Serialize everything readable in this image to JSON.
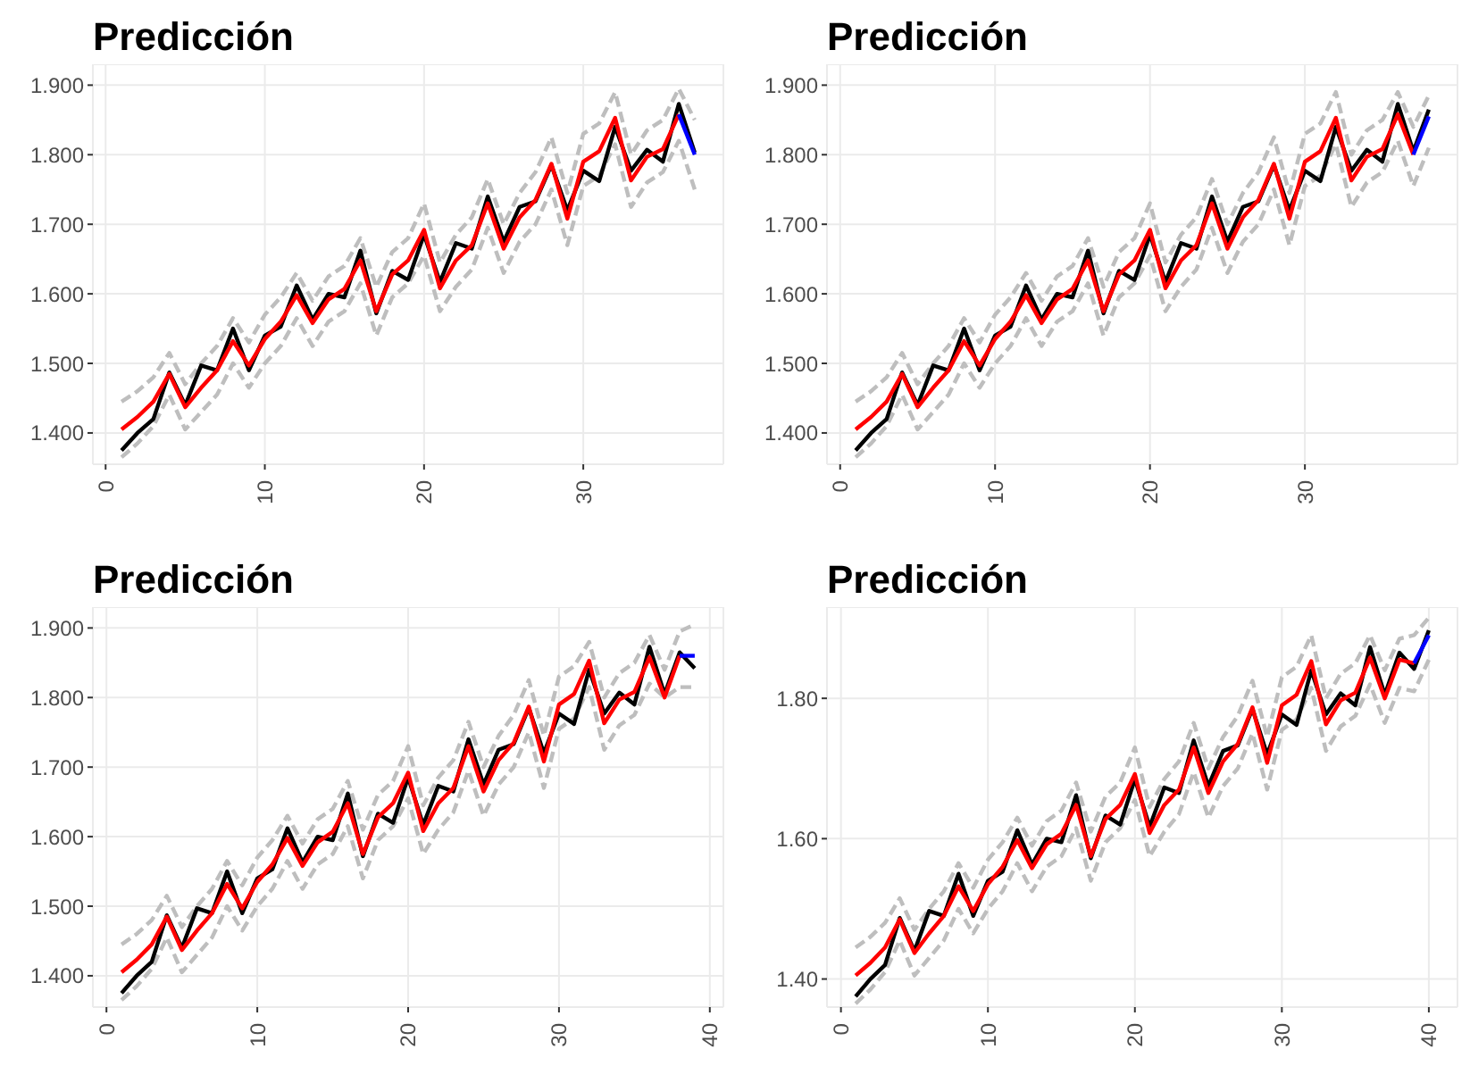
{
  "chart_data": [
    {
      "type": "line",
      "title": "Predicción",
      "xlim": [
        -0.8,
        38.8
      ],
      "xticks": [
        0,
        10,
        20,
        30
      ],
      "ylim": [
        1.355,
        1.93
      ],
      "yticks": [
        {
          "value": 1.4,
          "label": "1.400"
        },
        {
          "value": 1.5,
          "label": "1.500"
        },
        {
          "value": 1.6,
          "label": "1.600"
        },
        {
          "value": 1.7,
          "label": "1.700"
        },
        {
          "value": 1.8,
          "label": "1.800"
        },
        {
          "value": 1.9,
          "label": "1.900"
        }
      ],
      "grid": true,
      "marker": "none",
      "series": [
        {
          "color": "#bebebe",
          "line_style": "dashed",
          "x": [
            1,
            2,
            3,
            4,
            5,
            6,
            7,
            8,
            9,
            10,
            11,
            12,
            13,
            14,
            15,
            16,
            17,
            18,
            19,
            20,
            21,
            22,
            23,
            24,
            25,
            26,
            27,
            28,
            29,
            30,
            31,
            32,
            33,
            34,
            35,
            36,
            37
          ],
          "values": [
            1.445,
            1.46,
            1.48,
            1.515,
            1.47,
            1.5,
            1.525,
            1.565,
            1.53,
            1.57,
            1.595,
            1.63,
            1.59,
            1.625,
            1.64,
            1.68,
            1.61,
            1.66,
            1.68,
            1.73,
            1.645,
            1.685,
            1.71,
            1.765,
            1.7,
            1.745,
            1.775,
            1.825,
            1.745,
            1.83,
            1.845,
            1.89,
            1.8,
            1.835,
            1.85,
            1.895,
            1.85
          ]
        },
        {
          "color": "#bebebe",
          "line_style": "dashed",
          "x": [
            1,
            2,
            3,
            4,
            5,
            6,
            7,
            8,
            9,
            10,
            11,
            12,
            13,
            14,
            15,
            16,
            17,
            18,
            19,
            20,
            21,
            22,
            23,
            24,
            25,
            26,
            27,
            28,
            29,
            30,
            31,
            32,
            33,
            34,
            35,
            36,
            37
          ],
          "values": [
            1.365,
            1.385,
            1.41,
            1.455,
            1.405,
            1.43,
            1.455,
            1.5,
            1.465,
            1.5,
            1.525,
            1.565,
            1.525,
            1.56,
            1.575,
            1.615,
            1.54,
            1.595,
            1.615,
            1.655,
            1.575,
            1.61,
            1.635,
            1.695,
            1.63,
            1.675,
            1.7,
            1.75,
            1.67,
            1.755,
            1.77,
            1.815,
            1.725,
            1.76,
            1.775,
            1.82,
            1.75
          ]
        },
        {
          "color": "#000000",
          "line_style": "solid",
          "x": [
            1,
            2,
            3,
            4,
            5,
            6,
            7,
            8,
            9,
            10,
            11,
            12,
            13,
            14,
            15,
            16,
            17,
            18,
            19,
            20,
            21,
            22,
            23,
            24,
            25,
            26,
            27,
            28,
            29,
            30,
            31,
            32,
            33,
            34,
            35,
            36,
            37
          ],
          "values": [
            1.375,
            1.4,
            1.42,
            1.487,
            1.44,
            1.497,
            1.49,
            1.55,
            1.49,
            1.54,
            1.553,
            1.612,
            1.563,
            1.6,
            1.595,
            1.662,
            1.572,
            1.633,
            1.62,
            1.685,
            1.617,
            1.673,
            1.665,
            1.74,
            1.675,
            1.725,
            1.733,
            1.785,
            1.72,
            1.777,
            1.762,
            1.84,
            1.777,
            1.807,
            1.79,
            1.873,
            1.803
          ]
        },
        {
          "color": "#ff0000",
          "line_style": "solid",
          "x": [
            1,
            2,
            3,
            4,
            5,
            6,
            7,
            8,
            9,
            10,
            11,
            12,
            13,
            14,
            15,
            16,
            17,
            18,
            19,
            20,
            21,
            22,
            23,
            24,
            25,
            26,
            27,
            28,
            29,
            30,
            31,
            32,
            33,
            34,
            35,
            36
          ],
          "values": [
            1.405,
            1.423,
            1.445,
            1.485,
            1.437,
            1.465,
            1.49,
            1.532,
            1.497,
            1.535,
            1.56,
            1.598,
            1.558,
            1.592,
            1.607,
            1.648,
            1.575,
            1.628,
            1.648,
            1.692,
            1.608,
            1.648,
            1.67,
            1.73,
            1.665,
            1.71,
            1.735,
            1.787,
            1.708,
            1.79,
            1.805,
            1.853,
            1.763,
            1.797,
            1.808,
            1.858
          ]
        },
        {
          "color": "#0000ff",
          "line_style": "solid",
          "x": [
            36,
            37
          ],
          "values": [
            1.858,
            1.8
          ]
        }
      ]
    },
    {
      "type": "line",
      "title": "Predicción",
      "xlim": [
        -0.85,
        39.85
      ],
      "xticks": [
        0,
        10,
        20,
        30
      ],
      "ylim": [
        1.355,
        1.93
      ],
      "yticks": [
        {
          "value": 1.4,
          "label": "1.400"
        },
        {
          "value": 1.5,
          "label": "1.500"
        },
        {
          "value": 1.6,
          "label": "1.600"
        },
        {
          "value": 1.7,
          "label": "1.700"
        },
        {
          "value": 1.8,
          "label": "1.800"
        },
        {
          "value": 1.9,
          "label": "1.900"
        }
      ],
      "grid": true,
      "marker": "none",
      "series": [
        {
          "color": "#bebebe",
          "line_style": "dashed",
          "x": [
            1,
            2,
            3,
            4,
            5,
            6,
            7,
            8,
            9,
            10,
            11,
            12,
            13,
            14,
            15,
            16,
            17,
            18,
            19,
            20,
            21,
            22,
            23,
            24,
            25,
            26,
            27,
            28,
            29,
            30,
            31,
            32,
            33,
            34,
            35,
            36,
            37,
            38
          ],
          "values": [
            1.445,
            1.46,
            1.48,
            1.515,
            1.47,
            1.5,
            1.525,
            1.565,
            1.53,
            1.57,
            1.595,
            1.63,
            1.59,
            1.625,
            1.64,
            1.68,
            1.61,
            1.66,
            1.68,
            1.73,
            1.645,
            1.685,
            1.71,
            1.765,
            1.7,
            1.745,
            1.775,
            1.825,
            1.745,
            1.83,
            1.845,
            1.89,
            1.8,
            1.835,
            1.85,
            1.89,
            1.84,
            1.885
          ]
        },
        {
          "color": "#bebebe",
          "line_style": "dashed",
          "x": [
            1,
            2,
            3,
            4,
            5,
            6,
            7,
            8,
            9,
            10,
            11,
            12,
            13,
            14,
            15,
            16,
            17,
            18,
            19,
            20,
            21,
            22,
            23,
            24,
            25,
            26,
            27,
            28,
            29,
            30,
            31,
            32,
            33,
            34,
            35,
            36,
            37,
            38
          ],
          "values": [
            1.365,
            1.385,
            1.41,
            1.455,
            1.405,
            1.43,
            1.455,
            1.5,
            1.465,
            1.5,
            1.525,
            1.565,
            1.525,
            1.56,
            1.575,
            1.615,
            1.54,
            1.595,
            1.615,
            1.655,
            1.575,
            1.61,
            1.635,
            1.695,
            1.63,
            1.675,
            1.7,
            1.75,
            1.67,
            1.755,
            1.77,
            1.815,
            1.725,
            1.76,
            1.775,
            1.82,
            1.755,
            1.81
          ]
        },
        {
          "color": "#000000",
          "line_style": "solid",
          "x": [
            1,
            2,
            3,
            4,
            5,
            6,
            7,
            8,
            9,
            10,
            11,
            12,
            13,
            14,
            15,
            16,
            17,
            18,
            19,
            20,
            21,
            22,
            23,
            24,
            25,
            26,
            27,
            28,
            29,
            30,
            31,
            32,
            33,
            34,
            35,
            36,
            37,
            38
          ],
          "values": [
            1.375,
            1.4,
            1.42,
            1.487,
            1.44,
            1.497,
            1.49,
            1.55,
            1.49,
            1.54,
            1.553,
            1.612,
            1.563,
            1.6,
            1.595,
            1.662,
            1.572,
            1.633,
            1.62,
            1.685,
            1.617,
            1.673,
            1.665,
            1.74,
            1.675,
            1.725,
            1.733,
            1.785,
            1.72,
            1.777,
            1.762,
            1.84,
            1.777,
            1.807,
            1.79,
            1.873,
            1.805,
            1.865
          ]
        },
        {
          "color": "#ff0000",
          "line_style": "solid",
          "x": [
            1,
            2,
            3,
            4,
            5,
            6,
            7,
            8,
            9,
            10,
            11,
            12,
            13,
            14,
            15,
            16,
            17,
            18,
            19,
            20,
            21,
            22,
            23,
            24,
            25,
            26,
            27,
            28,
            29,
            30,
            31,
            32,
            33,
            34,
            35,
            36,
            37
          ],
          "values": [
            1.405,
            1.423,
            1.445,
            1.485,
            1.437,
            1.465,
            1.49,
            1.532,
            1.497,
            1.535,
            1.56,
            1.598,
            1.558,
            1.592,
            1.607,
            1.648,
            1.575,
            1.628,
            1.648,
            1.692,
            1.608,
            1.648,
            1.67,
            1.73,
            1.665,
            1.71,
            1.735,
            1.787,
            1.708,
            1.79,
            1.805,
            1.853,
            1.763,
            1.797,
            1.808,
            1.858,
            1.8
          ]
        },
        {
          "color": "#0000ff",
          "line_style": "solid",
          "x": [
            37,
            38
          ],
          "values": [
            1.8,
            1.855
          ]
        }
      ]
    },
    {
      "type": "line",
      "title": "Predicción",
      "xlim": [
        -0.9,
        40.9
      ],
      "xticks": [
        0,
        10,
        20,
        30,
        40
      ],
      "ylim": [
        1.355,
        1.93
      ],
      "yticks": [
        {
          "value": 1.4,
          "label": "1.400"
        },
        {
          "value": 1.5,
          "label": "1.500"
        },
        {
          "value": 1.6,
          "label": "1.600"
        },
        {
          "value": 1.7,
          "label": "1.700"
        },
        {
          "value": 1.8,
          "label": "1.800"
        },
        {
          "value": 1.9,
          "label": "1.900"
        }
      ],
      "grid": true,
      "marker": "none",
      "series": [
        {
          "color": "#bebebe",
          "line_style": "dashed",
          "x": [
            1,
            2,
            3,
            4,
            5,
            6,
            7,
            8,
            9,
            10,
            11,
            12,
            13,
            14,
            15,
            16,
            17,
            18,
            19,
            20,
            21,
            22,
            23,
            24,
            25,
            26,
            27,
            28,
            29,
            30,
            31,
            32,
            33,
            34,
            35,
            36,
            37,
            38,
            39
          ],
          "values": [
            1.445,
            1.46,
            1.48,
            1.515,
            1.47,
            1.5,
            1.525,
            1.565,
            1.53,
            1.57,
            1.595,
            1.63,
            1.59,
            1.625,
            1.64,
            1.68,
            1.61,
            1.66,
            1.68,
            1.73,
            1.645,
            1.685,
            1.71,
            1.765,
            1.7,
            1.745,
            1.775,
            1.825,
            1.745,
            1.83,
            1.845,
            1.88,
            1.8,
            1.835,
            1.85,
            1.89,
            1.84,
            1.895,
            1.905
          ]
        },
        {
          "color": "#bebebe",
          "line_style": "dashed",
          "x": [
            1,
            2,
            3,
            4,
            5,
            6,
            7,
            8,
            9,
            10,
            11,
            12,
            13,
            14,
            15,
            16,
            17,
            18,
            19,
            20,
            21,
            22,
            23,
            24,
            25,
            26,
            27,
            28,
            29,
            30,
            31,
            32,
            33,
            34,
            35,
            36,
            37,
            38,
            39
          ],
          "values": [
            1.365,
            1.385,
            1.41,
            1.455,
            1.405,
            1.43,
            1.455,
            1.5,
            1.465,
            1.5,
            1.525,
            1.565,
            1.525,
            1.56,
            1.575,
            1.615,
            1.54,
            1.595,
            1.615,
            1.655,
            1.575,
            1.61,
            1.635,
            1.695,
            1.63,
            1.675,
            1.7,
            1.75,
            1.67,
            1.755,
            1.77,
            1.815,
            1.725,
            1.76,
            1.775,
            1.82,
            1.8,
            1.815,
            1.815
          ]
        },
        {
          "color": "#000000",
          "line_style": "solid",
          "x": [
            1,
            2,
            3,
            4,
            5,
            6,
            7,
            8,
            9,
            10,
            11,
            12,
            13,
            14,
            15,
            16,
            17,
            18,
            19,
            20,
            21,
            22,
            23,
            24,
            25,
            26,
            27,
            28,
            29,
            30,
            31,
            32,
            33,
            34,
            35,
            36,
            37,
            38,
            39
          ],
          "values": [
            1.375,
            1.4,
            1.42,
            1.487,
            1.44,
            1.497,
            1.49,
            1.55,
            1.49,
            1.54,
            1.553,
            1.612,
            1.563,
            1.6,
            1.595,
            1.662,
            1.572,
            1.633,
            1.62,
            1.685,
            1.617,
            1.673,
            1.665,
            1.74,
            1.675,
            1.725,
            1.733,
            1.785,
            1.72,
            1.777,
            1.762,
            1.84,
            1.777,
            1.807,
            1.79,
            1.873,
            1.805,
            1.865,
            1.842
          ]
        },
        {
          "color": "#ff0000",
          "line_style": "solid",
          "x": [
            1,
            2,
            3,
            4,
            5,
            6,
            7,
            8,
            9,
            10,
            11,
            12,
            13,
            14,
            15,
            16,
            17,
            18,
            19,
            20,
            21,
            22,
            23,
            24,
            25,
            26,
            27,
            28,
            29,
            30,
            31,
            32,
            33,
            34,
            35,
            36,
            37,
            38
          ],
          "values": [
            1.405,
            1.423,
            1.445,
            1.485,
            1.437,
            1.465,
            1.49,
            1.532,
            1.497,
            1.535,
            1.56,
            1.598,
            1.558,
            1.592,
            1.607,
            1.648,
            1.575,
            1.628,
            1.648,
            1.692,
            1.608,
            1.648,
            1.67,
            1.73,
            1.665,
            1.71,
            1.735,
            1.787,
            1.708,
            1.79,
            1.805,
            1.853,
            1.763,
            1.797,
            1.808,
            1.858,
            1.8,
            1.86
          ]
        },
        {
          "color": "#0000ff",
          "line_style": "solid",
          "x": [
            38,
            39
          ],
          "values": [
            1.86,
            1.86
          ]
        }
      ]
    },
    {
      "type": "line",
      "title": "Predicción",
      "xlim": [
        -0.95,
        41.95
      ],
      "xticks": [
        0,
        10,
        20,
        30,
        40
      ],
      "ylim": [
        1.36,
        1.93
      ],
      "yticks": [
        {
          "value": 1.4,
          "label": "1.40"
        },
        {
          "value": 1.6,
          "label": "1.60"
        },
        {
          "value": 1.8,
          "label": "1.80"
        }
      ],
      "grid": true,
      "marker": "none",
      "series": [
        {
          "color": "#bebebe",
          "line_style": "dashed",
          "x": [
            1,
            2,
            3,
            4,
            5,
            6,
            7,
            8,
            9,
            10,
            11,
            12,
            13,
            14,
            15,
            16,
            17,
            18,
            19,
            20,
            21,
            22,
            23,
            24,
            25,
            26,
            27,
            28,
            29,
            30,
            31,
            32,
            33,
            34,
            35,
            36,
            37,
            38,
            39,
            40
          ],
          "values": [
            1.445,
            1.46,
            1.48,
            1.515,
            1.47,
            1.5,
            1.525,
            1.565,
            1.53,
            1.57,
            1.595,
            1.63,
            1.59,
            1.625,
            1.64,
            1.68,
            1.61,
            1.66,
            1.68,
            1.73,
            1.645,
            1.685,
            1.71,
            1.765,
            1.7,
            1.745,
            1.775,
            1.825,
            1.745,
            1.83,
            1.845,
            1.89,
            1.8,
            1.835,
            1.85,
            1.89,
            1.84,
            1.885,
            1.89,
            1.915
          ]
        },
        {
          "color": "#bebebe",
          "line_style": "dashed",
          "x": [
            1,
            2,
            3,
            4,
            5,
            6,
            7,
            8,
            9,
            10,
            11,
            12,
            13,
            14,
            15,
            16,
            17,
            18,
            19,
            20,
            21,
            22,
            23,
            24,
            25,
            26,
            27,
            28,
            29,
            30,
            31,
            32,
            33,
            34,
            35,
            36,
            37,
            38,
            39,
            40
          ],
          "values": [
            1.365,
            1.385,
            1.41,
            1.455,
            1.405,
            1.43,
            1.455,
            1.5,
            1.465,
            1.5,
            1.525,
            1.565,
            1.525,
            1.56,
            1.575,
            1.615,
            1.54,
            1.595,
            1.615,
            1.655,
            1.575,
            1.61,
            1.635,
            1.695,
            1.63,
            1.675,
            1.7,
            1.75,
            1.67,
            1.755,
            1.77,
            1.815,
            1.725,
            1.76,
            1.775,
            1.82,
            1.765,
            1.815,
            1.81,
            1.855
          ]
        },
        {
          "color": "#000000",
          "line_style": "solid",
          "x": [
            1,
            2,
            3,
            4,
            5,
            6,
            7,
            8,
            9,
            10,
            11,
            12,
            13,
            14,
            15,
            16,
            17,
            18,
            19,
            20,
            21,
            22,
            23,
            24,
            25,
            26,
            27,
            28,
            29,
            30,
            31,
            32,
            33,
            34,
            35,
            36,
            37,
            38,
            39,
            40
          ],
          "values": [
            1.375,
            1.4,
            1.42,
            1.487,
            1.44,
            1.497,
            1.49,
            1.55,
            1.49,
            1.54,
            1.553,
            1.612,
            1.563,
            1.6,
            1.595,
            1.662,
            1.572,
            1.633,
            1.62,
            1.685,
            1.617,
            1.673,
            1.665,
            1.74,
            1.675,
            1.725,
            1.733,
            1.785,
            1.72,
            1.777,
            1.762,
            1.84,
            1.777,
            1.807,
            1.79,
            1.873,
            1.805,
            1.865,
            1.842,
            1.897
          ]
        },
        {
          "color": "#ff0000",
          "line_style": "solid",
          "x": [
            1,
            2,
            3,
            4,
            5,
            6,
            7,
            8,
            9,
            10,
            11,
            12,
            13,
            14,
            15,
            16,
            17,
            18,
            19,
            20,
            21,
            22,
            23,
            24,
            25,
            26,
            27,
            28,
            29,
            30,
            31,
            32,
            33,
            34,
            35,
            36,
            37,
            38,
            39
          ],
          "values": [
            1.405,
            1.423,
            1.445,
            1.485,
            1.437,
            1.465,
            1.49,
            1.532,
            1.497,
            1.535,
            1.56,
            1.598,
            1.558,
            1.592,
            1.607,
            1.648,
            1.575,
            1.628,
            1.648,
            1.692,
            1.608,
            1.648,
            1.67,
            1.73,
            1.665,
            1.71,
            1.735,
            1.787,
            1.708,
            1.79,
            1.805,
            1.853,
            1.763,
            1.797,
            1.808,
            1.858,
            1.8,
            1.855,
            1.85
          ]
        },
        {
          "color": "#0000ff",
          "line_style": "solid",
          "x": [
            39,
            40
          ],
          "values": [
            1.85,
            1.89
          ]
        }
      ]
    }
  ]
}
